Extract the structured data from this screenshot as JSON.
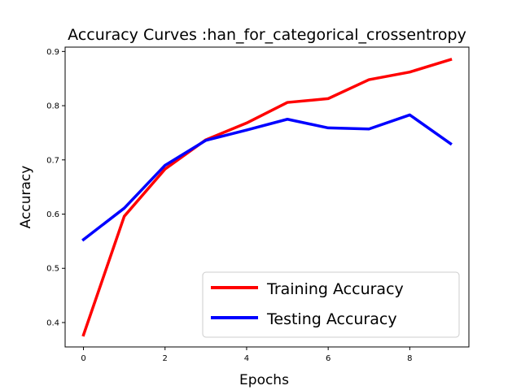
{
  "chart_data": {
    "type": "line",
    "title": "Accuracy Curves :han_for_categorical_crossentropy",
    "xlabel": "Epochs",
    "ylabel": "Accuracy",
    "x": [
      0,
      1,
      2,
      3,
      4,
      5,
      6,
      7,
      8,
      9
    ],
    "xlim": [
      -0.45,
      9.45
    ],
    "ylim": [
      0.355,
      0.908
    ],
    "xticks": [
      0,
      2,
      4,
      6,
      8
    ],
    "yticks": [
      0.4,
      0.5,
      0.6,
      0.7,
      0.8,
      0.9
    ],
    "xtick_labels": [
      "0",
      "2",
      "4",
      "6",
      "8"
    ],
    "ytick_labels": [
      "0.4",
      "0.5",
      "0.6",
      "0.7",
      "0.8",
      "0.9"
    ],
    "grid": false,
    "legend_position": "lower-right",
    "series": [
      {
        "name": "Training Accuracy",
        "color": "#ff0000",
        "values": [
          0.377,
          0.596,
          0.683,
          0.737,
          0.768,
          0.806,
          0.813,
          0.848,
          0.862,
          0.885
        ]
      },
      {
        "name": "Testing Accuracy",
        "color": "#0000ff",
        "values": [
          0.553,
          0.611,
          0.69,
          0.736,
          0.755,
          0.775,
          0.759,
          0.757,
          0.783,
          0.73
        ]
      }
    ]
  }
}
